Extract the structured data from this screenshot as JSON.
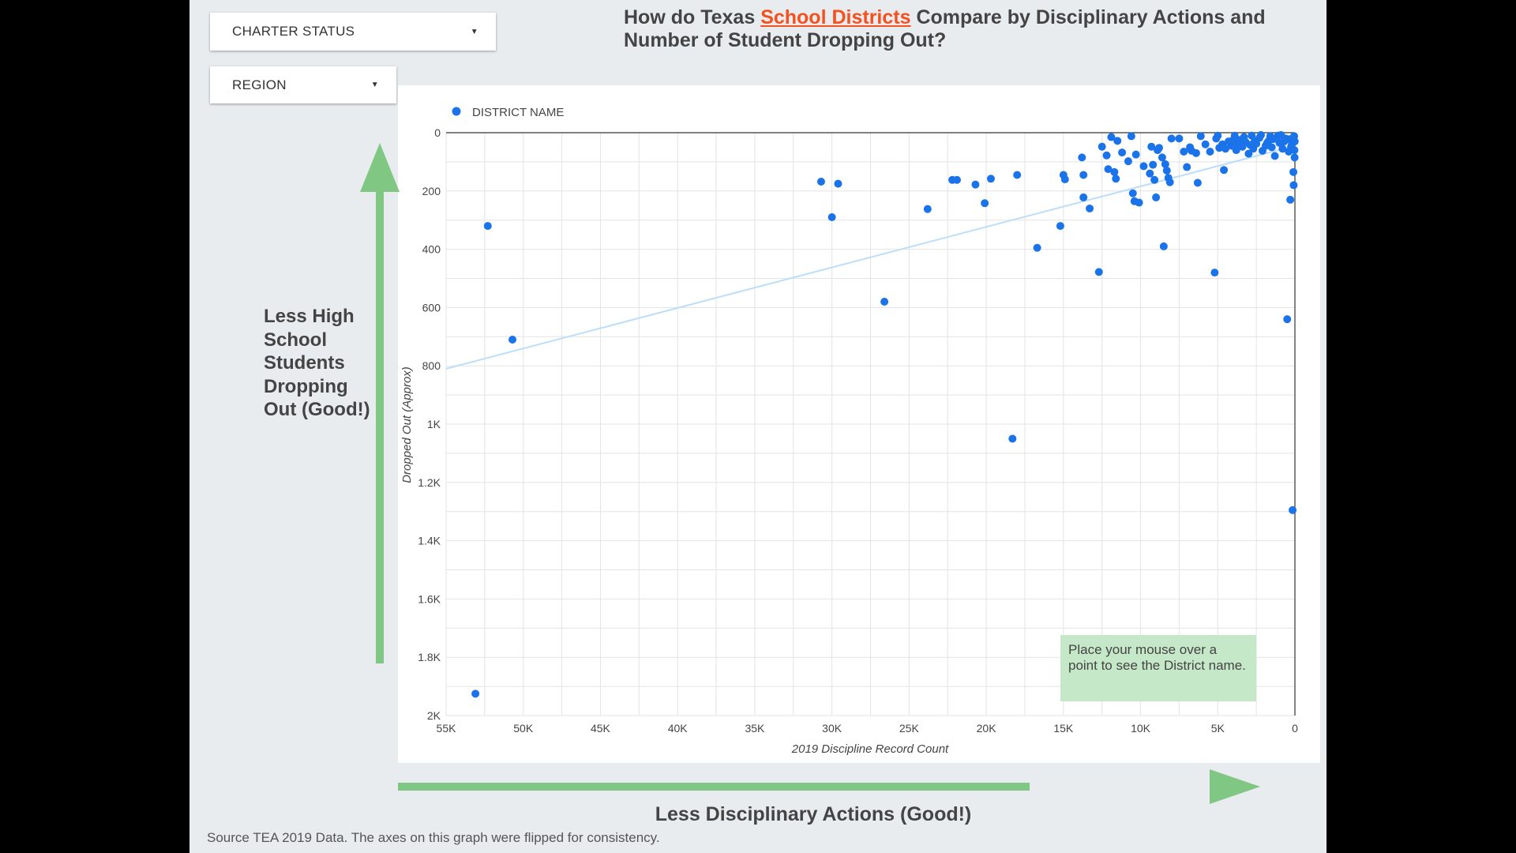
{
  "filters": {
    "charter_status": "CHARTER STATUS",
    "region": "REGION"
  },
  "title": {
    "part1": "How do Texas ",
    "highlight": "School Districts",
    "part2": " Compare by Disciplinary Actions and Number of Student Dropping Out?"
  },
  "left_annotation": "Less High School Students Dropping Out (Good!)",
  "bottom_annotation": "Less Disciplinary Actions (Good!)",
  "source_note": "Source TEA 2019 Data. The axes on this graph were flipped for consistency.",
  "hover_hint": "Place your mouse over a point to see the District name.",
  "colors": {
    "point": "#1a73e8",
    "trend": "#bbdefb",
    "arrow": "#81c784",
    "highlight": "#f4511e"
  },
  "chart_data": {
    "type": "scatter",
    "title": "",
    "xlabel": "2019 Discipline Record Count",
    "ylabel": "Dropped Out (Approx)",
    "legend": [
      "DISTRICT NAME"
    ],
    "legend_position": "top-left",
    "x_reversed": true,
    "y_reversed": true,
    "xlim": [
      0,
      55000
    ],
    "ylim": [
      0,
      2000
    ],
    "x_ticks": [
      "55K",
      "50K",
      "45K",
      "40K",
      "35K",
      "30K",
      "25K",
      "20K",
      "15K",
      "10K",
      "5K",
      "0"
    ],
    "y_ticks": [
      "0",
      "200",
      "400",
      "600",
      "800",
      "1K",
      "1.2K",
      "1.4K",
      "1.6K",
      "1.8K",
      "2K"
    ],
    "grid": true,
    "trendline": [
      [
        55000,
        810
      ],
      [
        0,
        45
      ]
    ],
    "series": [
      {
        "name": "DISTRICT NAME",
        "points": [
          [
            53100,
            1925
          ],
          [
            52300,
            320
          ],
          [
            50700,
            710
          ],
          [
            30700,
            168
          ],
          [
            30000,
            290
          ],
          [
            29600,
            175
          ],
          [
            26600,
            580
          ],
          [
            23800,
            262
          ],
          [
            22200,
            162
          ],
          [
            21900,
            162
          ],
          [
            20700,
            178
          ],
          [
            20100,
            242
          ],
          [
            19700,
            158
          ],
          [
            18300,
            1050
          ],
          [
            18000,
            145
          ],
          [
            16700,
            395
          ],
          [
            15200,
            320
          ],
          [
            15000,
            145
          ],
          [
            14900,
            160
          ],
          [
            13800,
            85
          ],
          [
            13700,
            145
          ],
          [
            13700,
            222
          ],
          [
            13300,
            260
          ],
          [
            12700,
            478
          ],
          [
            12500,
            48
          ],
          [
            12200,
            78
          ],
          [
            12100,
            125
          ],
          [
            11900,
            15
          ],
          [
            11700,
            135
          ],
          [
            11600,
            158
          ],
          [
            11500,
            28
          ],
          [
            11200,
            68
          ],
          [
            10800,
            98
          ],
          [
            10600,
            12
          ],
          [
            10500,
            208
          ],
          [
            10400,
            235
          ],
          [
            10300,
            75
          ],
          [
            10100,
            240
          ],
          [
            9800,
            115
          ],
          [
            9400,
            140
          ],
          [
            9300,
            48
          ],
          [
            9200,
            110
          ],
          [
            9100,
            162
          ],
          [
            9000,
            222
          ],
          [
            8900,
            60
          ],
          [
            8800,
            52
          ],
          [
            8600,
            85
          ],
          [
            8500,
            390
          ],
          [
            8400,
            108
          ],
          [
            8300,
            130
          ],
          [
            8200,
            155
          ],
          [
            8100,
            170
          ],
          [
            8000,
            20
          ],
          [
            7500,
            20
          ],
          [
            7200,
            65
          ],
          [
            7000,
            118
          ],
          [
            6800,
            50
          ],
          [
            6700,
            62
          ],
          [
            6400,
            70
          ],
          [
            6300,
            172
          ],
          [
            6100,
            12
          ],
          [
            5800,
            40
          ],
          [
            5500,
            65
          ],
          [
            5200,
            480
          ],
          [
            5100,
            20
          ],
          [
            4900,
            52
          ],
          [
            4700,
            40
          ],
          [
            4600,
            128
          ],
          [
            4500,
            55
          ],
          [
            4300,
            30
          ],
          [
            4100,
            45
          ],
          [
            3900,
            10
          ],
          [
            3800,
            60
          ],
          [
            3600,
            25
          ],
          [
            3400,
            48
          ],
          [
            3200,
            32
          ],
          [
            3000,
            72
          ],
          [
            2800,
            10
          ],
          [
            2700,
            55
          ],
          [
            2500,
            38
          ],
          [
            2300,
            18
          ],
          [
            2100,
            62
          ],
          [
            1900,
            45
          ],
          [
            1700,
            28
          ],
          [
            1500,
            50
          ],
          [
            1300,
            80
          ],
          [
            1100,
            10
          ],
          [
            1000,
            35
          ],
          [
            800,
            55
          ],
          [
            600,
            20
          ],
          [
            500,
            640
          ],
          [
            400,
            65
          ],
          [
            300,
            230
          ],
          [
            200,
            40
          ],
          [
            150,
            1295
          ],
          [
            100,
            135
          ],
          [
            80,
            180
          ],
          [
            50,
            12
          ],
          [
            30,
            60
          ],
          [
            20,
            85
          ],
          [
            10,
            30
          ],
          [
            5000,
            10
          ],
          [
            3300,
            15
          ],
          [
            2200,
            8
          ],
          [
            1600,
            12
          ],
          [
            900,
            8
          ],
          [
            700,
            30
          ],
          [
            350,
            22
          ],
          [
            250,
            48
          ],
          [
            4000,
            25
          ],
          [
            2600,
            28
          ],
          [
            1400,
            22
          ],
          [
            3700,
            38
          ],
          [
            2900,
            42
          ],
          [
            1800,
            35
          ]
        ]
      }
    ]
  }
}
